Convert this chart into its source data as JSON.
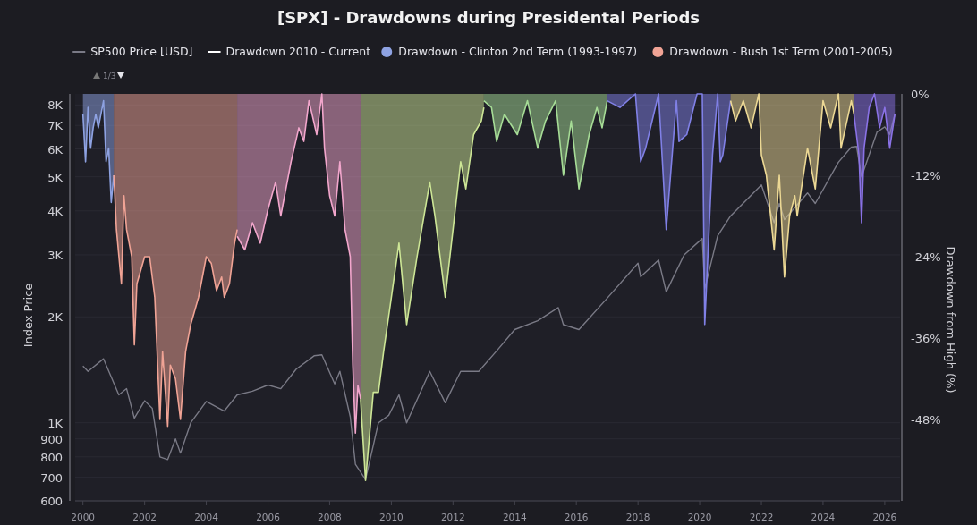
{
  "chart_data": {
    "type": "area",
    "title": "[SPX] - Drawdowns during Presidental Periods",
    "ylabel": "Index Price",
    "y2label": "Drawdown from High (%)",
    "annotations": [
      "1/3"
    ],
    "xlim": [
      "1999-10",
      "2026-07"
    ],
    "xticks": [
      "2000",
      "2002",
      "2004",
      "2006",
      "2008",
      "2010",
      "2012",
      "2014",
      "2016",
      "2018",
      "2020",
      "2022",
      "2024",
      "2026"
    ],
    "log": "y",
    "ylim": [
      600,
      8600
    ],
    "yticks": [
      600,
      700,
      800,
      900,
      {
        "value": 1000,
        "label": "1K"
      },
      {
        "value": 2000,
        "label": "2K"
      },
      {
        "value": 3000,
        "label": "3K"
      },
      {
        "value": 4000,
        "label": "4K"
      },
      {
        "value": 5000,
        "label": "5K"
      },
      {
        "value": 6000,
        "label": "6K"
      },
      {
        "value": 7000,
        "label": "7K"
      },
      {
        "value": 8000,
        "label": "8K"
      }
    ],
    "y2lim": [
      -60,
      0
    ],
    "y2ticks": [
      {
        "value": 0,
        "label": "0%"
      },
      {
        "value": -12,
        "label": "-12%"
      },
      {
        "value": -24,
        "label": "-24%"
      },
      {
        "value": -36,
        "label": "-36%"
      },
      {
        "value": -48,
        "label": "-48%"
      }
    ],
    "grid": "y",
    "legend": "top",
    "series": [
      {
        "name": "SP500 Price [USD]",
        "type": "line",
        "color": "#7a7a86",
        "x": [
          "2000-01",
          "2000-03",
          "2000-09",
          "2001-03",
          "2001-06",
          "2001-09",
          "2002-01",
          "2002-04",
          "2002-07",
          "2002-10",
          "2003-01",
          "2003-03",
          "2003-07",
          "2004-01",
          "2004-08",
          "2005-01",
          "2005-07",
          "2006-01",
          "2006-06",
          "2006-12",
          "2007-07",
          "2007-10",
          "2008-03",
          "2008-05",
          "2008-09",
          "2008-11",
          "2009-03",
          "2009-08",
          "2009-12",
          "2010-04",
          "2010-07",
          "2011-04",
          "2011-10",
          "2012-04",
          "2012-11",
          "2013-06",
          "2014-01",
          "2014-10",
          "2015-06",
          "2015-08",
          "2016-02",
          "2017-01",
          "2018-01",
          "2018-02",
          "2018-09",
          "2018-12",
          "2019-07",
          "2020-02",
          "2020-03",
          "2020-08",
          "2021-01",
          "2022-01",
          "2022-06",
          "2022-08",
          "2022-10",
          "2023-07",
          "2023-10",
          "2024-07",
          "2024-12",
          "2025-02",
          "2025-04",
          "2025-10",
          "2026-01",
          "2026-03",
          "2026-05"
        ],
        "values": [
          1450,
          1400,
          1520,
          1200,
          1250,
          1030,
          1155,
          1100,
          800,
          786,
          900,
          820,
          1000,
          1150,
          1080,
          1200,
          1230,
          1280,
          1250,
          1420,
          1550,
          1560,
          1290,
          1400,
          1040,
          762,
          690,
          1000,
          1050,
          1200,
          1000,
          1400,
          1140,
          1400,
          1400,
          1600,
          1840,
          1950,
          2125,
          1900,
          1840,
          2260,
          2840,
          2600,
          2900,
          2355,
          3000,
          3340,
          2400,
          3400,
          3870,
          4740,
          3700,
          4200,
          3780,
          4500,
          4200,
          5500,
          6070,
          6100,
          5000,
          6700,
          6930,
          6600,
          7530
        ]
      },
      {
        "name": "Drawdown 2010 - Current",
        "type": "line",
        "axis": "y2",
        "color": "#ffffff"
      },
      {
        "name": "Drawdown - Clinton 2nd Term (1993-1997)",
        "axis": "y2",
        "color": "#8ea2e2",
        "x": [
          "2000-01",
          "2000-02",
          "2000-03",
          "2000-04",
          "2000-05",
          "2000-06",
          "2000-07",
          "2000-09",
          "2000-10",
          "2000-11",
          "2000-12",
          "2001-01"
        ],
        "values": [
          -3,
          -10,
          -2,
          -8,
          -5,
          -3,
          -5,
          -1,
          -10,
          -8,
          -16,
          -12
        ]
      },
      {
        "name": "Drawdown - Bush 1st Term (2001-2005)",
        "axis": "y2",
        "color": "#f0a395",
        "x": [
          "2001-01",
          "2001-02",
          "2001-04",
          "2001-05",
          "2001-06",
          "2001-08",
          "2001-09",
          "2001-10",
          "2002-01",
          "2002-03",
          "2002-05",
          "2002-07",
          "2002-08",
          "2002-10",
          "2002-11",
          "2003-01",
          "2003-03",
          "2003-05",
          "2003-07",
          "2003-10",
          "2004-01",
          "2004-03",
          "2004-05",
          "2004-07",
          "2004-08",
          "2004-10",
          "2004-12",
          "2005-01"
        ],
        "values": [
          -12,
          -20,
          -28,
          -15,
          -20,
          -24,
          -37,
          -28,
          -24,
          -24,
          -30,
          -48,
          -38,
          -49,
          -40,
          -42,
          -48,
          -38,
          -34,
          -30,
          -24,
          -25,
          -29,
          -27,
          -30,
          -28,
          -22,
          -20
        ]
      },
      {
        "axis": "y2",
        "color": "#f2a6cc",
        "x": [
          "2005-01",
          "2005-04",
          "2005-07",
          "2005-10",
          "2006-01",
          "2006-04",
          "2006-06",
          "2006-10",
          "2007-01",
          "2007-03",
          "2007-05",
          "2007-08",
          "2007-10",
          "2007-11",
          "2008-01",
          "2008-03",
          "2008-05",
          "2008-07",
          "2008-09",
          "2008-10",
          "2008-11",
          "2008-12",
          "2009-01"
        ],
        "values": [
          -21,
          -23,
          -19,
          -22,
          -17,
          -13,
          -18,
          -10,
          -5,
          -7,
          -1,
          -6,
          0,
          -8,
          -15,
          -18,
          -10,
          -20,
          -24,
          -40,
          -50,
          -43,
          -45
        ]
      },
      {
        "axis": "y2",
        "color": "#cde696",
        "x": [
          "2009-01",
          "2009-03",
          "2009-06",
          "2009-08",
          "2009-10",
          "2010-01",
          "2010-04",
          "2010-07",
          "2010-11",
          "2011-04",
          "2011-06",
          "2011-10",
          "2012-01",
          "2012-04",
          "2012-06",
          "2012-09",
          "2012-12",
          "2013-01"
        ],
        "values": [
          -45,
          -57,
          -44,
          -44,
          -38,
          -30,
          -22,
          -34,
          -24,
          -13,
          -18,
          -30,
          -20,
          -10,
          -14,
          -6,
          -4,
          -2
        ]
      },
      {
        "axis": "y2",
        "color": "#a6dc96",
        "x": [
          "2013-01",
          "2013-04",
          "2013-06",
          "2013-09",
          "2014-02",
          "2014-06",
          "2014-10",
          "2015-01",
          "2015-05",
          "2015-08",
          "2015-11",
          "2016-02",
          "2016-06",
          "2016-09",
          "2016-11",
          "2017-01"
        ],
        "values": [
          -1,
          -2,
          -7,
          -3,
          -6,
          -1,
          -8,
          -4,
          -1,
          -12,
          -4,
          -14,
          -6,
          -2,
          -5,
          -1
        ]
      },
      {
        "axis": "y2",
        "color": "#8080e6",
        "x": [
          "2017-01",
          "2017-06",
          "2017-12",
          "2018-02",
          "2018-04",
          "2018-09",
          "2018-12",
          "2019-04",
          "2019-05",
          "2019-08",
          "2019-12",
          "2020-02",
          "2020-03",
          "2020-06",
          "2020-08",
          "2020-09",
          "2020-10",
          "2021-01"
        ],
        "values": [
          -1,
          -2,
          0,
          -10,
          -8,
          0,
          -20,
          -1,
          -7,
          -6,
          0,
          0,
          -34,
          -9,
          0,
          -10,
          -9,
          -1
        ]
      },
      {
        "axis": "y2",
        "color": "#ecd894",
        "x": [
          "2021-01",
          "2021-03",
          "2021-06",
          "2021-09",
          "2021-12",
          "2022-01",
          "2022-03",
          "2022-06",
          "2022-08",
          "2022-10",
          "2022-12",
          "2023-02",
          "2023-03",
          "2023-07",
          "2023-10",
          "2024-01",
          "2024-04",
          "2024-07",
          "2024-08",
          "2024-12",
          "2025-01"
        ],
        "values": [
          -1,
          -4,
          -1,
          -5,
          0,
          -9,
          -12,
          -23,
          -12,
          -27,
          -18,
          -15,
          -18,
          -8,
          -14,
          -1,
          -5,
          0,
          -8,
          -1,
          -3
        ]
      },
      {
        "axis": "y2",
        "color": "#8a72e6",
        "x": [
          "2025-01",
          "2025-03",
          "2025-04",
          "2025-05",
          "2025-07",
          "2025-09",
          "2025-11",
          "2026-01",
          "2026-03",
          "2026-05"
        ],
        "values": [
          -3,
          -9,
          -19,
          -8,
          -2,
          0,
          -5,
          -2,
          -8,
          -3
        ]
      }
    ]
  }
}
